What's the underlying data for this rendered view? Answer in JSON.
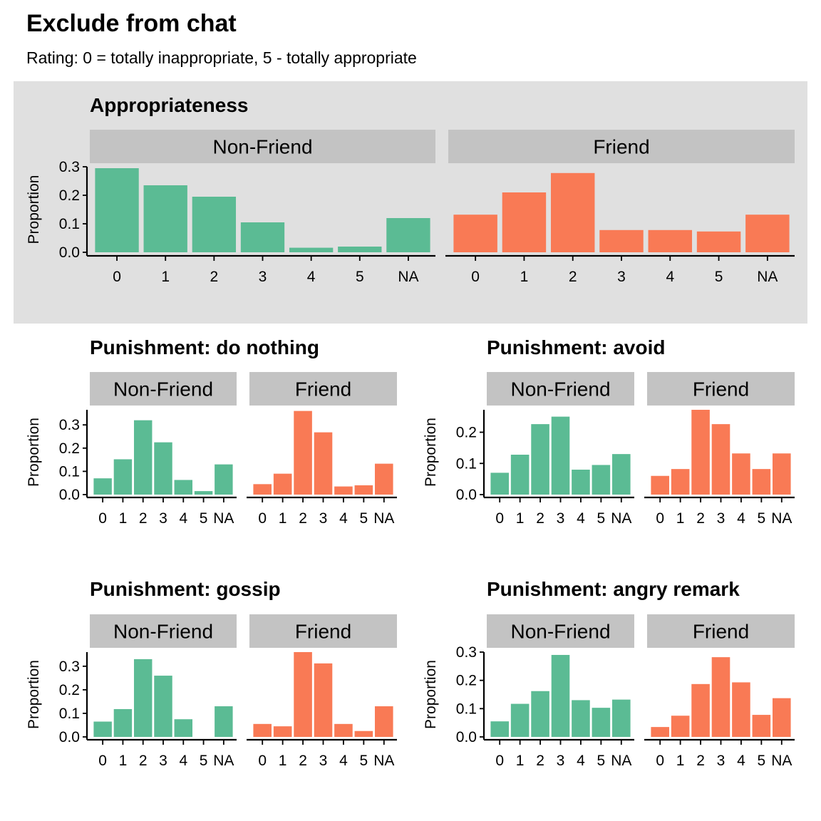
{
  "title": "Exclude from chat",
  "subtitle": "Rating: 0 = totally inappropriate, 5 - totally appropriate",
  "colors": {
    "non_friend": "#5bbb94",
    "friend": "#f97a55",
    "strip": "#c3c3c3",
    "highlight": "#e0e0e0"
  },
  "chart_data": [
    {
      "type": "bar",
      "title": "Appropriateness",
      "ylabel": "Proportion",
      "categories": [
        "0",
        "1",
        "2",
        "3",
        "4",
        "5",
        "NA"
      ],
      "yticks": [
        0.0,
        0.1,
        0.2,
        0.3
      ],
      "ylim": [
        0,
        0.3
      ],
      "series": [
        {
          "name": "Non-Friend",
          "values": [
            0.295,
            0.235,
            0.195,
            0.105,
            0.016,
            0.02,
            0.12
          ]
        },
        {
          "name": "Friend",
          "values": [
            0.132,
            0.21,
            0.278,
            0.078,
            0.078,
            0.073,
            0.132
          ]
        }
      ]
    },
    {
      "type": "bar",
      "title": "Punishment: do nothing",
      "ylabel": "Proportion",
      "categories": [
        "0",
        "1",
        "2",
        "3",
        "4",
        "5",
        "NA"
      ],
      "yticks": [
        0.0,
        0.1,
        0.2,
        0.3
      ],
      "ylim": [
        0,
        0.365
      ],
      "series": [
        {
          "name": "Non-Friend",
          "values": [
            0.07,
            0.152,
            0.32,
            0.225,
            0.063,
            0.015,
            0.13
          ]
        },
        {
          "name": "Friend",
          "values": [
            0.045,
            0.09,
            0.36,
            0.268,
            0.035,
            0.04,
            0.133
          ]
        }
      ]
    },
    {
      "type": "bar",
      "title": "Punishment: avoid",
      "ylabel": "Proportion",
      "categories": [
        "0",
        "1",
        "2",
        "3",
        "4",
        "5",
        "NA"
      ],
      "yticks": [
        0.0,
        0.1,
        0.2
      ],
      "ylim": [
        0,
        0.272
      ],
      "series": [
        {
          "name": "Non-Friend",
          "values": [
            0.07,
            0.128,
            0.226,
            0.25,
            0.08,
            0.095,
            0.13
          ]
        },
        {
          "name": "Friend",
          "values": [
            0.06,
            0.082,
            0.272,
            0.226,
            0.132,
            0.082,
            0.132
          ]
        }
      ]
    },
    {
      "type": "bar",
      "title": "Punishment: gossip",
      "ylabel": "Proportion",
      "categories": [
        "0",
        "1",
        "2",
        "3",
        "4",
        "5",
        "NA"
      ],
      "yticks": [
        0.0,
        0.1,
        0.2,
        0.3
      ],
      "ylim": [
        0,
        0.36
      ],
      "series": [
        {
          "name": "Non-Friend",
          "values": [
            0.065,
            0.118,
            0.33,
            0.26,
            0.075,
            0.0,
            0.13
          ]
        },
        {
          "name": "Friend",
          "values": [
            0.055,
            0.045,
            0.36,
            0.312,
            0.055,
            0.025,
            0.13
          ]
        }
      ]
    },
    {
      "type": "bar",
      "title": "Punishment: angry remark",
      "ylabel": "Proportion",
      "categories": [
        "0",
        "1",
        "2",
        "3",
        "4",
        "5",
        "NA"
      ],
      "yticks": [
        0.0,
        0.1,
        0.2,
        0.3
      ],
      "ylim": [
        0,
        0.3
      ],
      "series": [
        {
          "name": "Non-Friend",
          "values": [
            0.055,
            0.117,
            0.162,
            0.29,
            0.13,
            0.103,
            0.132
          ]
        },
        {
          "name": "Friend",
          "values": [
            0.035,
            0.075,
            0.187,
            0.282,
            0.193,
            0.078,
            0.137
          ]
        }
      ]
    }
  ]
}
